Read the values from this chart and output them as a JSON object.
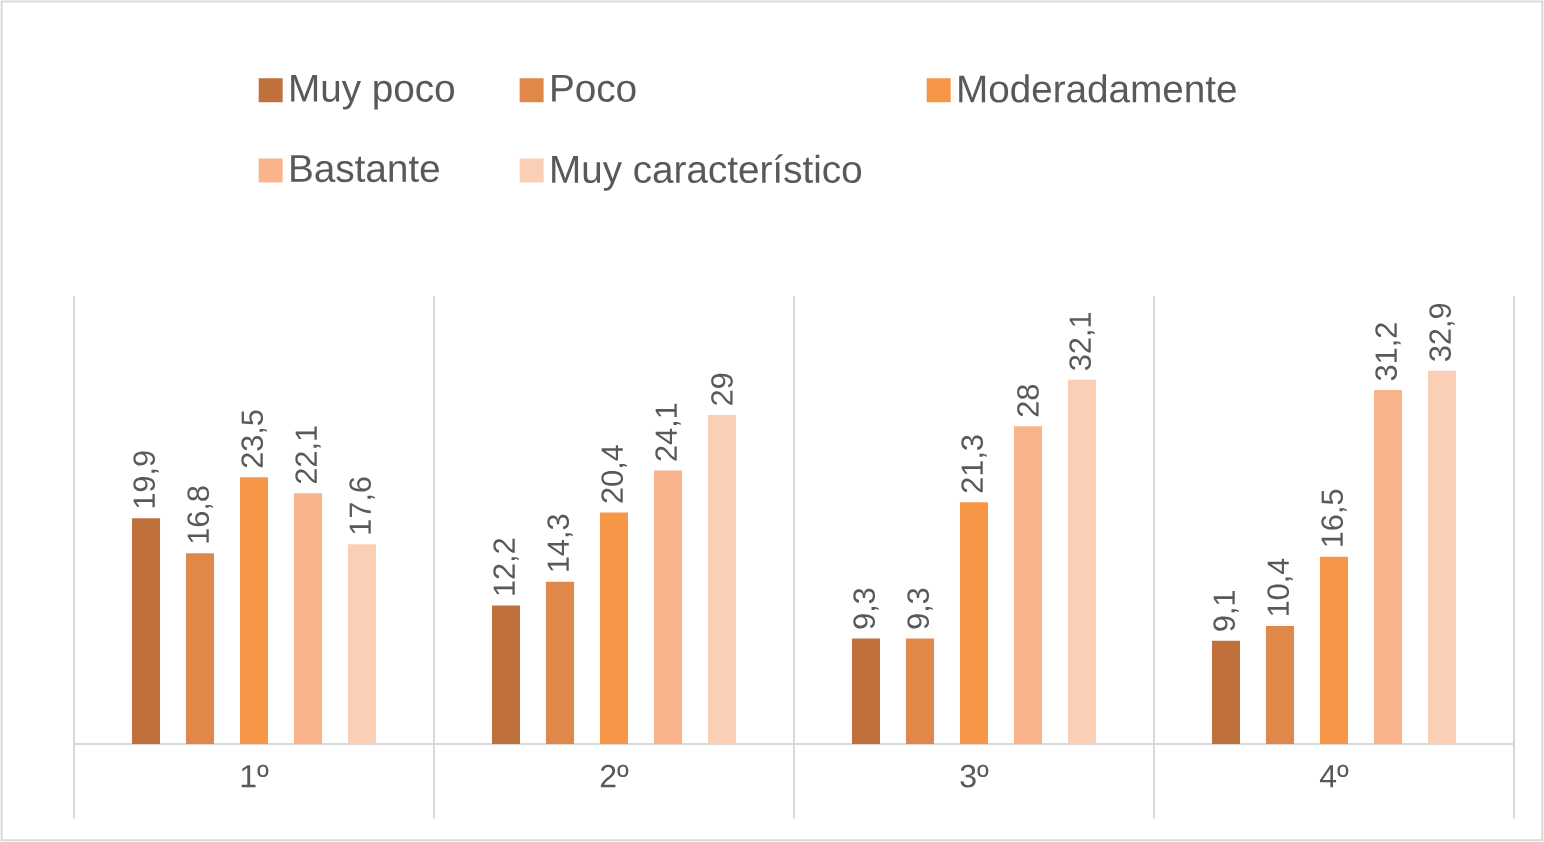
{
  "chart_data": {
    "type": "bar",
    "categories": [
      "1º",
      "2º",
      "3º",
      "4º"
    ],
    "series": [
      {
        "name": "Muy poco",
        "color": "#c0703a",
        "values": [
          19.9,
          12.2,
          9.3,
          9.1
        ],
        "value_labels": [
          "19,9",
          "12,2",
          "9,3",
          "9,1"
        ]
      },
      {
        "name": "Poco",
        "color": "#e0884a",
        "values": [
          16.8,
          14.3,
          9.3,
          10.4
        ],
        "value_labels": [
          "16,8",
          "14,3",
          "9,3",
          "10,4"
        ]
      },
      {
        "name": "Moderadamente",
        "color": "#f79646",
        "values": [
          23.5,
          20.4,
          21.3,
          16.5
        ],
        "value_labels": [
          "23,5",
          "20,4",
          "21,3",
          "16,5"
        ]
      },
      {
        "name": "Bastante",
        "color": "#f9b48c",
        "values": [
          22.1,
          24.1,
          28,
          31.2
        ],
        "value_labels": [
          "22,1",
          "24,1",
          "28",
          "31,2"
        ]
      },
      {
        "name": "Muy característico",
        "color": "#fbcfb5",
        "values": [
          17.6,
          29,
          32.1,
          32.9
        ],
        "value_labels": [
          "17,6",
          "29",
          "32,1",
          "32,9"
        ]
      }
    ],
    "grid": "x",
    "legend": "top"
  }
}
